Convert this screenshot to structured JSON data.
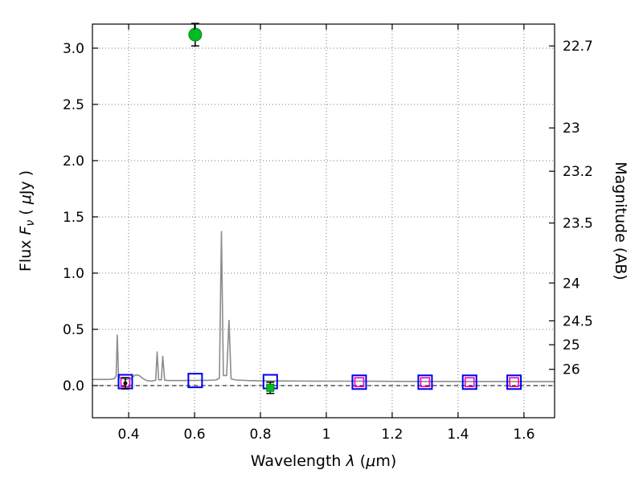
{
  "chart_data": {
    "type": "line+scatter",
    "title": "",
    "xlabel": "Wavelength λ (μm)",
    "ylabel_left": "Flux Fν ( μJy )",
    "ylabel_right": "Magnitude (AB)",
    "xlim": [
      0.29,
      1.693
    ],
    "ylim_flux": [
      -0.286,
      3.214
    ],
    "grid": "dotted",
    "reference_line_y": 0.0,
    "xticks": {
      "values": [
        0.4,
        0.6,
        0.8,
        1.0,
        1.2,
        1.4,
        1.6
      ],
      "labels": [
        "0.4",
        "0.6",
        "0.8",
        "1",
        "1.2",
        "1.4",
        "1.6"
      ]
    },
    "yticks_left": {
      "values": [
        0.0,
        0.5,
        1.0,
        1.5,
        2.0,
        2.5,
        3.0
      ],
      "labels": [
        "0.0",
        "0.5",
        "1.0",
        "1.5",
        "2.0",
        "2.5",
        "3.0"
      ]
    },
    "right_axis": {
      "unit": "AB magnitude",
      "zeropoint_uJy_mag": 23.9,
      "tick_mags": [
        22.7,
        23,
        23.2,
        23.5,
        24,
        24.5,
        25,
        26
      ],
      "tick_labels": [
        "22.7",
        "23",
        "23.2",
        "23.5",
        "24",
        "24.5",
        "25",
        "26"
      ]
    },
    "colors": {
      "spectrum": "#8c8c8c",
      "blue_square": "#0000ee",
      "magenta_square": "#ee00bb",
      "green_marker": "#00bb22",
      "green_edge": "#008815",
      "black_marker": "#111111",
      "grid_line": "#777777",
      "axis_line": "#000000"
    },
    "series": [
      {
        "name": "model-spectrum",
        "type": "line",
        "color_key": "spectrum",
        "points": [
          [
            0.29,
            0.055
          ],
          [
            0.34,
            0.055
          ],
          [
            0.356,
            0.06
          ],
          [
            0.362,
            0.085
          ],
          [
            0.3655,
            0.45
          ],
          [
            0.369,
            0.095
          ],
          [
            0.374,
            0.065
          ],
          [
            0.385,
            0.06
          ],
          [
            0.395,
            0.055
          ],
          [
            0.405,
            0.06
          ],
          [
            0.413,
            0.08
          ],
          [
            0.422,
            0.095
          ],
          [
            0.432,
            0.09
          ],
          [
            0.442,
            0.065
          ],
          [
            0.455,
            0.045
          ],
          [
            0.47,
            0.04
          ],
          [
            0.482,
            0.048
          ],
          [
            0.4865,
            0.3
          ],
          [
            0.491,
            0.052
          ],
          [
            0.499,
            0.05
          ],
          [
            0.5035,
            0.26
          ],
          [
            0.509,
            0.048
          ],
          [
            0.52,
            0.045
          ],
          [
            0.56,
            0.045
          ],
          [
            0.6,
            0.046
          ],
          [
            0.64,
            0.047
          ],
          [
            0.665,
            0.05
          ],
          [
            0.6755,
            0.065
          ],
          [
            0.6815,
            1.37
          ],
          [
            0.6875,
            0.09
          ],
          [
            0.6975,
            0.09
          ],
          [
            0.7045,
            0.58
          ],
          [
            0.711,
            0.06
          ],
          [
            0.725,
            0.05
          ],
          [
            0.76,
            0.045
          ],
          [
            0.8,
            0.042
          ],
          [
            0.85,
            0.041
          ],
          [
            0.95,
            0.04
          ],
          [
            1.05,
            0.039
          ],
          [
            1.15,
            0.038
          ],
          [
            1.25,
            0.037
          ],
          [
            1.35,
            0.037
          ],
          [
            1.45,
            0.036
          ],
          [
            1.55,
            0.036
          ],
          [
            1.693,
            0.035
          ]
        ]
      },
      {
        "name": "model-photometry-blue-squares",
        "type": "scatter",
        "marker": "open-square",
        "color_key": "blue_square",
        "size": 17,
        "stroke_width": 2,
        "points": [
          [
            0.39,
            0.035
          ],
          [
            0.602,
            0.045
          ],
          [
            0.83,
            0.035
          ],
          [
            1.1,
            0.03
          ],
          [
            1.3,
            0.03
          ],
          [
            1.435,
            0.03
          ],
          [
            1.57,
            0.03
          ]
        ]
      },
      {
        "name": "photometry-magenta-squares",
        "type": "scatter",
        "marker": "open-square",
        "color_key": "magenta_square",
        "size": 11,
        "stroke_width": 1.6,
        "points": [
          [
            0.39,
            0.03
          ],
          [
            1.1,
            0.03
          ],
          [
            1.3,
            0.03
          ],
          [
            1.435,
            0.03
          ],
          [
            1.57,
            0.03
          ]
        ]
      },
      {
        "name": "observed-black-point",
        "type": "scatter",
        "marker": "dot",
        "color_key": "black_marker",
        "size": 5,
        "points": [
          [
            0.39,
            0.02
          ]
        ],
        "yerr": [
          0.05
        ]
      },
      {
        "name": "observed-green-detection",
        "type": "scatter",
        "marker": "filled-circle",
        "color_key": "green_marker",
        "edge_key": "green_edge",
        "size": 16,
        "points": [
          [
            0.602,
            3.12
          ]
        ],
        "yerr": [
          0.1
        ]
      },
      {
        "name": "observed-green-nondetection",
        "type": "scatter",
        "marker": "filled-square",
        "color_key": "green_marker",
        "edge_key": "green_edge",
        "size": 9,
        "points": [
          [
            0.83,
            -0.02
          ]
        ],
        "yerr": [
          0.05
        ]
      }
    ]
  }
}
